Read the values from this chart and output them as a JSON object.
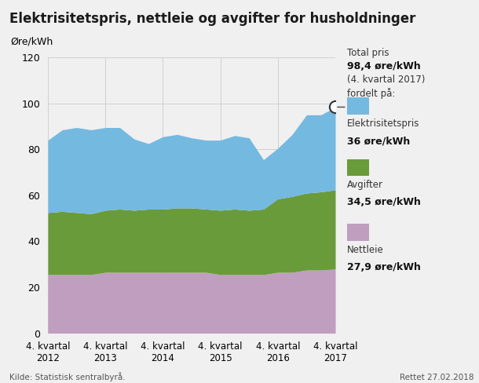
{
  "title": "Elektrisitetspris, nettleie og avgifter for husholdninger",
  "ylabel": "Øre/kWh",
  "source": "Kilde: Statistisk sentralbyrå.",
  "updated": "Rettet 27.02.2018",
  "x_tick_labels": [
    "4. kvartal\n2012",
    "4. kvartal\n2013",
    "4. kvartal\n2014",
    "4. kvartal\n2015",
    "4. kvartal\n2016",
    "4. kvartal\n2017"
  ],
  "x_tick_positions": [
    0,
    4,
    8,
    12,
    16,
    20
  ],
  "nettleie": [
    25.5,
    25.5,
    25.5,
    25.5,
    26.5,
    26.5,
    26.5,
    26.5,
    26.5,
    26.5,
    26.5,
    26.5,
    25.5,
    25.5,
    25.5,
    25.5,
    26.5,
    26.5,
    27.5,
    27.5,
    27.9
  ],
  "avgifter": [
    27.0,
    27.5,
    27.0,
    26.5,
    27.0,
    27.5,
    27.0,
    27.5,
    27.5,
    28.0,
    28.0,
    27.5,
    28.0,
    28.5,
    28.0,
    28.5,
    32.0,
    33.0,
    33.5,
    34.0,
    34.5
  ],
  "elektrisitetspris": [
    31.5,
    35.5,
    37.0,
    36.5,
    36.0,
    35.5,
    31.0,
    28.5,
    31.5,
    32.0,
    30.5,
    30.0,
    30.5,
    32.0,
    31.5,
    21.5,
    22.0,
    27.0,
    34.0,
    33.5,
    36.0
  ],
  "color_nettleie": "#c09ec0",
  "color_avgifter": "#6a9b3a",
  "color_elektrisitetspris": "#74b9e0",
  "color_grid": "#d0d0d0",
  "ylim": [
    0,
    120
  ],
  "yticks": [
    0,
    20,
    40,
    60,
    80,
    100,
    120
  ],
  "annotation_text_line1": "Total pris",
  "annotation_text_line2": "98,4 øre/kWh",
  "annotation_text_line3": "(4. kvartal 2017)",
  "annotation_text_line4": "fordelt på:",
  "legend_items": [
    {
      "label": "Elektrisitetspris",
      "value": "36 øre/kWh",
      "color": "#74b9e0"
    },
    {
      "label": "Avgifter",
      "value": "34,5 øre/kWh",
      "color": "#6a9b3a"
    },
    {
      "label": "Nettleie",
      "value": "27,9 øre/kWh",
      "color": "#c09ec0"
    }
  ],
  "background_color": "#f0f0f0",
  "plot_bg_color": "#f0f0f0"
}
